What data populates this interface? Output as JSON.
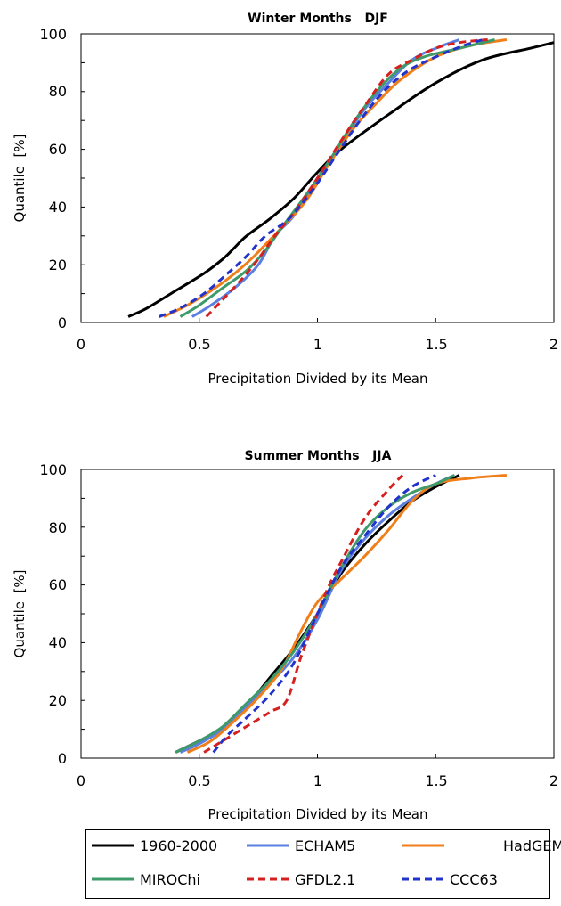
{
  "chart_data": [
    {
      "type": "line",
      "title": "Winter Months   DJF",
      "xlabel": "Precipitation Divided by its Mean",
      "ylabel": "Quantile  [%]",
      "xlim": [
        0,
        2
      ],
      "ylim": [
        0,
        100
      ],
      "xticks": [
        "0",
        "0.5",
        "1",
        "1.5",
        "2"
      ],
      "yticks": [
        "0",
        "20",
        "40",
        "60",
        "80",
        "100"
      ],
      "grid": false,
      "series": [
        {
          "name": "1960-2000",
          "color": "#000000",
          "dash": "solid",
          "x": [
            0.2,
            0.28,
            0.4,
            0.52,
            0.6,
            0.65,
            0.7,
            0.8,
            0.9,
            1.0,
            1.1,
            1.3,
            1.5,
            1.7,
            1.9,
            2.0
          ],
          "y": [
            2,
            5,
            11,
            17,
            22,
            26,
            30,
            36,
            43,
            52,
            60,
            72,
            83,
            91,
            95,
            97
          ]
        },
        {
          "name": "ECHAM5",
          "color": "#5b7fe0",
          "dash": "solid",
          "x": [
            0.47,
            0.55,
            0.65,
            0.75,
            0.82,
            0.9,
            1.0,
            1.1,
            1.2,
            1.3,
            1.4,
            1.5,
            1.6
          ],
          "y": [
            2,
            6,
            12,
            20,
            30,
            37,
            50,
            62,
            74,
            83,
            91,
            95,
            98
          ]
        },
        {
          "name": "HadGEM",
          "color": "#f07f1a",
          "dash": "solid",
          "x": [
            0.35,
            0.45,
            0.55,
            0.65,
            0.72,
            0.78,
            0.85,
            0.95,
            1.05,
            1.15,
            1.25,
            1.35,
            1.5,
            1.65,
            1.8
          ],
          "y": [
            2,
            6,
            11,
            17,
            22,
            27,
            33,
            42,
            55,
            67,
            76,
            84,
            92,
            96,
            98
          ]
        },
        {
          "name": "MIROChi",
          "color": "#3f9a6a",
          "dash": "solid",
          "x": [
            0.42,
            0.5,
            0.6,
            0.7,
            0.78,
            0.85,
            0.95,
            1.05,
            1.15,
            1.25,
            1.35,
            1.45,
            1.6,
            1.75
          ],
          "y": [
            2,
            6,
            12,
            18,
            25,
            33,
            44,
            56,
            69,
            80,
            88,
            92,
            95,
            98
          ]
        },
        {
          "name": "GFDL2.1",
          "color": "#d62020",
          "dash": "dash",
          "x": [
            0.53,
            0.6,
            0.68,
            0.75,
            0.82,
            0.9,
            1.0,
            1.1,
            1.2,
            1.3,
            1.4,
            1.5,
            1.6,
            1.72
          ],
          "y": [
            2,
            8,
            15,
            22,
            30,
            38,
            50,
            63,
            75,
            86,
            91,
            95,
            97,
            98
          ]
        },
        {
          "name": "CCC63",
          "color": "#2233cc",
          "dash": "dash",
          "x": [
            0.33,
            0.42,
            0.52,
            0.62,
            0.7,
            0.78,
            0.88,
            0.98,
            1.08,
            1.18,
            1.28,
            1.38,
            1.5,
            1.62,
            1.7
          ],
          "y": [
            2,
            5,
            10,
            17,
            23,
            30,
            36,
            46,
            58,
            70,
            80,
            87,
            92,
            96,
            98
          ]
        }
      ]
    },
    {
      "type": "line",
      "title": "Summer Months   JJA",
      "xlabel": "Precipitation Divided by its Mean",
      "ylabel": "Quantile  [%]",
      "xlim": [
        0,
        2
      ],
      "ylim": [
        0,
        100
      ],
      "xticks": [
        "0",
        "0.5",
        "1",
        "1.5",
        "2"
      ],
      "yticks": [
        "0",
        "20",
        "40",
        "60",
        "80",
        "100"
      ],
      "grid": false,
      "series": [
        {
          "name": "1960-2000",
          "color": "#000000",
          "dash": "solid",
          "x": [
            0.4,
            0.5,
            0.6,
            0.7,
            0.8,
            0.9,
            1.0,
            1.1,
            1.2,
            1.3,
            1.4,
            1.5,
            1.6
          ],
          "y": [
            2,
            6,
            10,
            18,
            28,
            38,
            50,
            64,
            74,
            82,
            89,
            94,
            98
          ]
        },
        {
          "name": "ECHAM5",
          "color": "#5b7fe0",
          "dash": "solid",
          "x": [
            0.42,
            0.5,
            0.6,
            0.7,
            0.8,
            0.9,
            1.0,
            1.1,
            1.2,
            1.3,
            1.4,
            1.5,
            1.58
          ],
          "y": [
            2,
            5,
            10,
            18,
            26,
            35,
            48,
            65,
            76,
            84,
            90,
            95,
            98
          ]
        },
        {
          "name": "HadGEM",
          "color": "#f07f1a",
          "dash": "solid",
          "x": [
            0.45,
            0.55,
            0.65,
            0.75,
            0.85,
            0.93,
            1.0,
            1.1,
            1.2,
            1.3,
            1.4,
            1.5,
            1.65,
            1.8
          ],
          "y": [
            2,
            6,
            13,
            21,
            31,
            44,
            54,
            62,
            70,
            79,
            89,
            95,
            97,
            98
          ]
        },
        {
          "name": "MIROChi",
          "color": "#3f9a6a",
          "dash": "solid",
          "x": [
            0.4,
            0.5,
            0.6,
            0.7,
            0.8,
            0.9,
            1.0,
            1.1,
            1.2,
            1.3,
            1.4,
            1.5,
            1.58
          ],
          "y": [
            2,
            6,
            11,
            19,
            27,
            37,
            50,
            66,
            79,
            87,
            92,
            95,
            98
          ]
        },
        {
          "name": "GFDL2.1",
          "color": "#d62020",
          "dash": "dash",
          "x": [
            0.52,
            0.6,
            0.7,
            0.8,
            0.87,
            0.93,
            1.0,
            1.05,
            1.1,
            1.2,
            1.3,
            1.36
          ],
          "y": [
            2,
            6,
            11,
            16,
            20,
            35,
            50,
            60,
            68,
            83,
            93,
            98
          ]
        },
        {
          "name": "CCC63",
          "color": "#2233cc",
          "dash": "dash",
          "x": [
            0.56,
            0.62,
            0.7,
            0.8,
            0.9,
            1.0,
            1.1,
            1.2,
            1.3,
            1.4,
            1.5
          ],
          "y": [
            2,
            8,
            14,
            22,
            33,
            50,
            66,
            77,
            87,
            94,
            98
          ]
        }
      ]
    }
  ]
}
